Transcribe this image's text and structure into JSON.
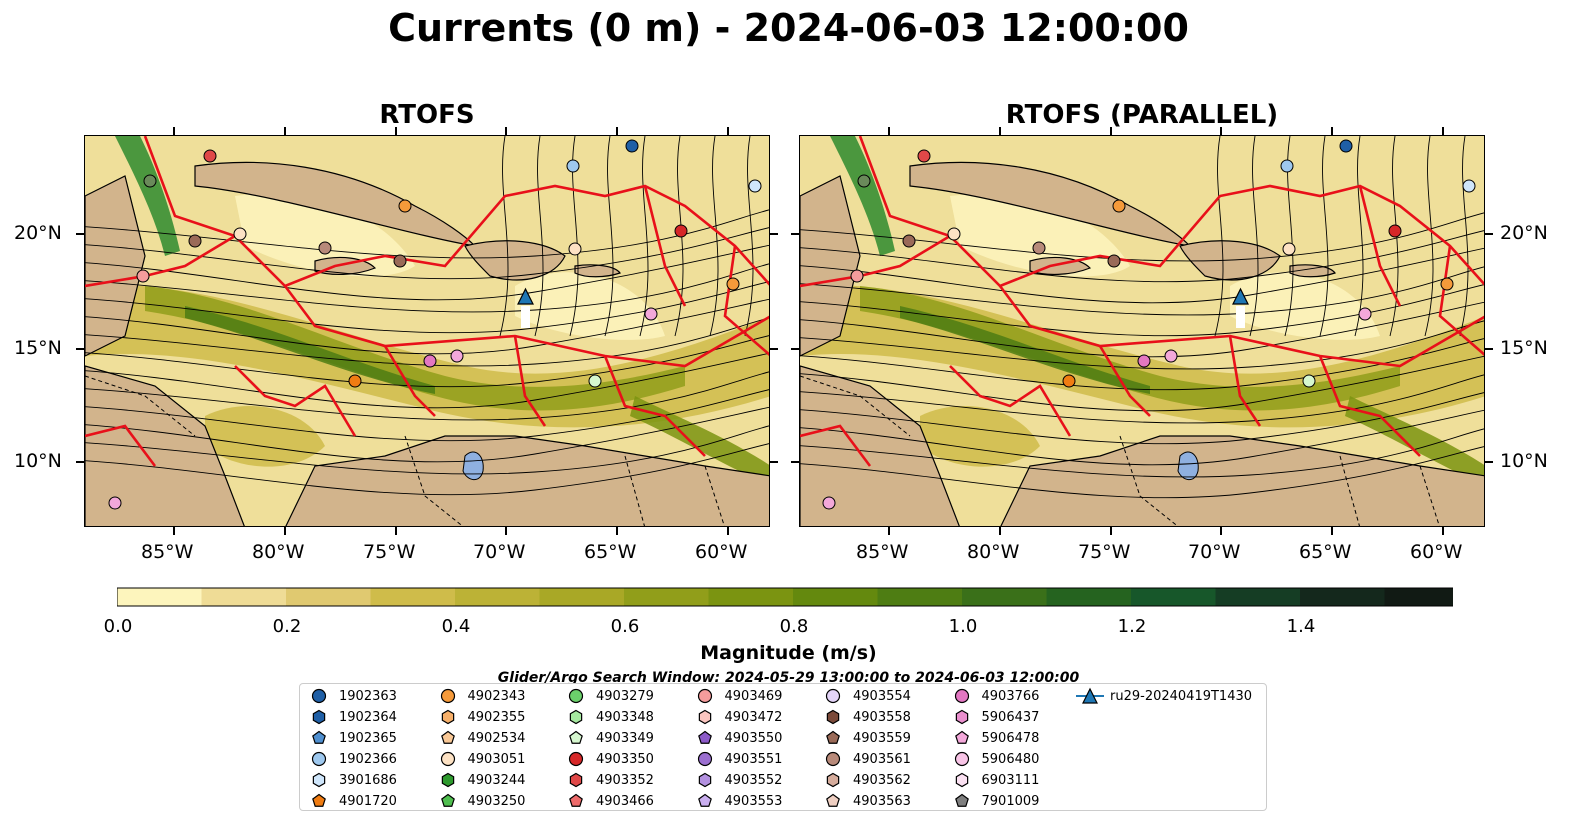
{
  "title": "Currents (0 m) - 2024-06-03 12:00:00",
  "panels": [
    {
      "title": "RTOFS"
    },
    {
      "title": "RTOFS (PARALLEL)"
    }
  ],
  "lat_labels": [
    "20°N",
    "15°N",
    "10°N"
  ],
  "lon_labels": [
    "85°W",
    "80°W",
    "75°W",
    "70°W",
    "65°W",
    "60°W"
  ],
  "colorbar": {
    "title": "Magnitude (m/s)",
    "tick_labels": [
      "0.0",
      "0.2",
      "0.4",
      "0.6",
      "0.8",
      "1.0",
      "1.2",
      "1.4"
    ],
    "colors": [
      "#fdf5bd",
      "#efdc96",
      "#e0c970",
      "#cfbc4a",
      "#bcb236",
      "#a9a826",
      "#919e1a",
      "#7b9411",
      "#64890e",
      "#4e7d13",
      "#3a7019",
      "#25631f",
      "#17572a",
      "#153d24",
      "#14281c",
      "#111a14"
    ]
  },
  "search_window": "Glider/Argo Search Window: 2024-05-29 13:00:00 to 2024-06-03 12:00:00",
  "legend": [
    {
      "label": "1902363",
      "shape": "circle",
      "color": "#1f5fa6"
    },
    {
      "label": "1902364",
      "shape": "hexagon",
      "color": "#1f5fa6"
    },
    {
      "label": "1902365",
      "shape": "pentagon",
      "color": "#4f8fcf"
    },
    {
      "label": "1902366",
      "shape": "circle",
      "color": "#9ec8ee"
    },
    {
      "label": "3901686",
      "shape": "hexagon",
      "color": "#cfe6fb"
    },
    {
      "label": "4901720",
      "shape": "pentagon",
      "color": "#f07c12"
    },
    {
      "label": "4902343",
      "shape": "circle",
      "color": "#f59a3a"
    },
    {
      "label": "4902355",
      "shape": "hexagon",
      "color": "#f7b06a"
    },
    {
      "label": "4902534",
      "shape": "pentagon",
      "color": "#f9c896"
    },
    {
      "label": "4903051",
      "shape": "circle",
      "color": "#fde2c4"
    },
    {
      "label": "4903244",
      "shape": "hexagon",
      "color": "#2e9a2e"
    },
    {
      "label": "4903250",
      "shape": "pentagon",
      "color": "#4fbe4f"
    },
    {
      "label": "4903279",
      "shape": "circle",
      "color": "#6bd06b"
    },
    {
      "label": "4903348",
      "shape": "hexagon",
      "color": "#a6e8a0"
    },
    {
      "label": "4903349",
      "shape": "pentagon",
      "color": "#d6f7cf"
    },
    {
      "label": "4903350",
      "shape": "circle",
      "color": "#d62728"
    },
    {
      "label": "4903352",
      "shape": "hexagon",
      "color": "#e04848"
    },
    {
      "label": "4903466",
      "shape": "pentagon",
      "color": "#ee6b6b"
    },
    {
      "label": "4903469",
      "shape": "circle",
      "color": "#f59c9c"
    },
    {
      "label": "4903472",
      "shape": "hexagon",
      "color": "#fbc6c0"
    },
    {
      "label": "4903550",
      "shape": "pentagon",
      "color": "#8c5ac8"
    },
    {
      "label": "4903551",
      "shape": "circle",
      "color": "#9b6fd0"
    },
    {
      "label": "4903552",
      "shape": "hexagon",
      "color": "#b391e0"
    },
    {
      "label": "4903553",
      "shape": "pentagon",
      "color": "#caaff0"
    },
    {
      "label": "4903554",
      "shape": "circle",
      "color": "#e4d4f8"
    },
    {
      "label": "4903558",
      "shape": "hexagon",
      "color": "#7b4a3a"
    },
    {
      "label": "4903559",
      "shape": "pentagon",
      "color": "#9a6a58"
    },
    {
      "label": "4903561",
      "shape": "circle",
      "color": "#b88a7a"
    },
    {
      "label": "4903562",
      "shape": "hexagon",
      "color": "#d6ac9c"
    },
    {
      "label": "4903563",
      "shape": "pentagon",
      "color": "#efcfc2"
    },
    {
      "label": "4903766",
      "shape": "circle",
      "color": "#e377c2"
    },
    {
      "label": "5906437",
      "shape": "hexagon",
      "color": "#ea8fce"
    },
    {
      "label": "5906478",
      "shape": "pentagon",
      "color": "#f3a8da"
    },
    {
      "label": "5906480",
      "shape": "circle",
      "color": "#f8c4e6"
    },
    {
      "label": "6903111",
      "shape": "hexagon",
      "color": "#fbe1f2"
    },
    {
      "label": "7901009",
      "shape": "pentagon",
      "color": "#7f7f7f"
    },
    {
      "label": "ru29-20240419T1430",
      "shape": "triangle-line",
      "color": "#1f77b4"
    }
  ]
}
